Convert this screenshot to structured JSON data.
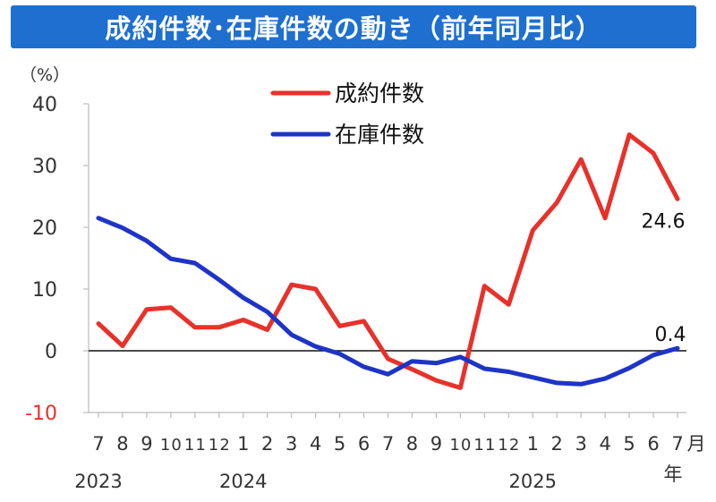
{
  "chart_data": {
    "type": "line",
    "title": "成約件数･在庫件数の動き（前年同月比）",
    "ylabel": "（%）",
    "x_unit": "月",
    "year_unit": "年",
    "ylim": [
      -10,
      40
    ],
    "yticks": [
      -10,
      0,
      10,
      20,
      30,
      40
    ],
    "grid": false,
    "legend_position": "top-center",
    "categories": [
      "7",
      "8",
      "9",
      "10",
      "11",
      "12",
      "1",
      "2",
      "3",
      "4",
      "5",
      "6",
      "7",
      "8",
      "9",
      "10",
      "11",
      "12",
      "1",
      "2",
      "3",
      "4",
      "5",
      "6",
      "7"
    ],
    "year_labels": [
      {
        "label": "2023",
        "index": 0
      },
      {
        "label": "2024",
        "index": 6
      },
      {
        "label": "2025",
        "index": 18
      }
    ],
    "series": [
      {
        "name": "成約件数",
        "color": "#e8312a",
        "end_label": "24.6",
        "values": [
          4.4,
          0.8,
          6.7,
          7.0,
          3.8,
          3.8,
          5.0,
          3.4,
          10.7,
          10.0,
          4.0,
          4.8,
          -1.3,
          -3.0,
          -4.8,
          -6.0,
          10.5,
          7.5,
          19.5,
          24.0,
          31.0,
          21.5,
          35.0,
          32.0,
          24.6
        ]
      },
      {
        "name": "在庫件数",
        "color": "#1e34c8",
        "end_label": "0.4",
        "values": [
          21.5,
          19.9,
          17.8,
          14.9,
          14.2,
          11.5,
          8.6,
          6.3,
          2.6,
          0.7,
          -0.5,
          -2.6,
          -3.8,
          -1.7,
          -2.0,
          -1.0,
          -2.9,
          -3.4,
          -4.3,
          -5.2,
          -5.4,
          -4.5,
          -2.8,
          -0.7,
          0.4
        ]
      }
    ],
    "axis_colors": {
      "default": "#333333",
      "negative_tick": "#e8312a"
    }
  }
}
